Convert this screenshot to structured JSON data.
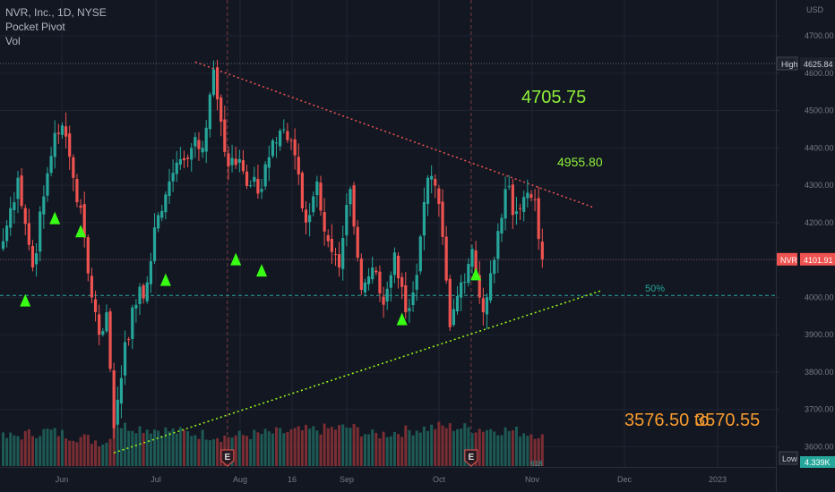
{
  "legend": {
    "symbol_line": "NVR, Inc., 1D, NYSE",
    "indicator": "Pocket Pivot",
    "volume": "Vol"
  },
  "annotations": {
    "target_a": "4705.75",
    "target_b": "4955.80",
    "range_low": "3576.50 to",
    "range_high": "3570.55",
    "fib_level": "50%",
    "fib_small": "618"
  },
  "price_scale": {
    "currency": "USD",
    "ticks": [
      "4700.00",
      "4600.00",
      "4500.00",
      "4400.00",
      "4300.00",
      "4200.00",
      "4100.00",
      "4000.00",
      "3900.00",
      "3800.00",
      "3700.00",
      "3600.00"
    ],
    "high_label": "High",
    "high_value": "4625.84",
    "last_symbol": "NVR",
    "last_value": "4101.91",
    "low_label": "Low",
    "volume_value": "4.339K"
  },
  "time_axis": {
    "labels": [
      "Jun",
      "Jul",
      "Aug",
      "16",
      "Sep",
      "Oct",
      "Nov",
      "Dec",
      "2023"
    ]
  },
  "colors": {
    "background": "#131722",
    "up": "#26a69a",
    "down": "#ef5350",
    "pivot_marker": "#39ff14",
    "resistance_line": "#ef5350",
    "support_line": "#9bff1a",
    "fib_line": "#26a69a",
    "target_green": "#8ef03a",
    "target_orange": "#f79b2e"
  },
  "chart_data": {
    "type": "candlestick",
    "symbol": "NVR, Inc.",
    "interval": "1D",
    "exchange": "NYSE",
    "y_unit": "USD",
    "ylim": [
      3560,
      4760
    ],
    "high": 4625.84,
    "last": 4101.91,
    "fib_50": 4005,
    "grid": true,
    "legend_position": "top-left",
    "anchors": [
      [
        0,
        4150
      ],
      [
        4,
        4320
      ],
      [
        8,
        4080
      ],
      [
        11,
        4270
      ],
      [
        14,
        4440
      ],
      [
        16,
        4460
      ],
      [
        19,
        4320
      ],
      [
        21,
        4240
      ],
      [
        24,
        4000
      ],
      [
        26,
        3900
      ],
      [
        28,
        3960
      ],
      [
        30,
        3650
      ],
      [
        33,
        3880
      ],
      [
        36,
        3980
      ],
      [
        39,
        4040
      ],
      [
        42,
        4220
      ],
      [
        45,
        4310
      ],
      [
        48,
        4370
      ],
      [
        51,
        4400
      ],
      [
        54,
        4400
      ],
      [
        57,
        4610
      ],
      [
        59,
        4470
      ],
      [
        61,
        4350
      ],
      [
        64,
        4370
      ],
      [
        67,
        4300
      ],
      [
        70,
        4290
      ],
      [
        73,
        4420
      ],
      [
        76,
        4450
      ],
      [
        79,
        4380
      ],
      [
        82,
        4200
      ],
      [
        85,
        4310
      ],
      [
        88,
        4150
      ],
      [
        91,
        4080
      ],
      [
        94,
        4290
      ],
      [
        97,
        4020
      ],
      [
        100,
        4080
      ],
      [
        103,
        3980
      ],
      [
        106,
        4120
      ],
      [
        109,
        3960
      ],
      [
        112,
        4060
      ],
      [
        115,
        4320
      ],
      [
        118,
        4250
      ],
      [
        121,
        3920
      ],
      [
        124,
        4040
      ],
      [
        127,
        4130
      ],
      [
        130,
        3960
      ],
      [
        133,
        4100
      ],
      [
        136,
        4290
      ],
      [
        139,
        4230
      ],
      [
        142,
        4280
      ],
      [
        144,
        4260
      ],
      [
        146,
        4101.91
      ]
    ],
    "volume_k": [
      [
        0,
        3.8
      ],
      [
        12,
        4.8
      ],
      [
        28,
        3.2
      ],
      [
        30,
        5.6
      ],
      [
        60,
        4.0
      ],
      [
        94,
        5.3
      ],
      [
        100,
        4.2
      ],
      [
        118,
        5.4
      ],
      [
        136,
        4.9
      ],
      [
        146,
        4.339
      ]
    ],
    "earnings_markers": [
      60,
      126
    ],
    "pocket_pivots": [
      [
        6,
        3990
      ],
      [
        14,
        4210
      ],
      [
        21,
        4175
      ],
      [
        44,
        4045
      ],
      [
        63,
        4100
      ],
      [
        70,
        4070
      ],
      [
        108,
        3940
      ],
      [
        128,
        4060
      ]
    ],
    "resistance": {
      "from": [
        52,
        4630
      ],
      "to": [
        160,
        4240
      ]
    },
    "support": {
      "from": [
        30,
        3584
      ],
      "to": [
        162,
        4018
      ]
    },
    "months": [
      "Jun",
      "Jul",
      "Aug",
      "16",
      "Sep",
      "Oct",
      "Nov",
      "Dec",
      "2023"
    ]
  }
}
